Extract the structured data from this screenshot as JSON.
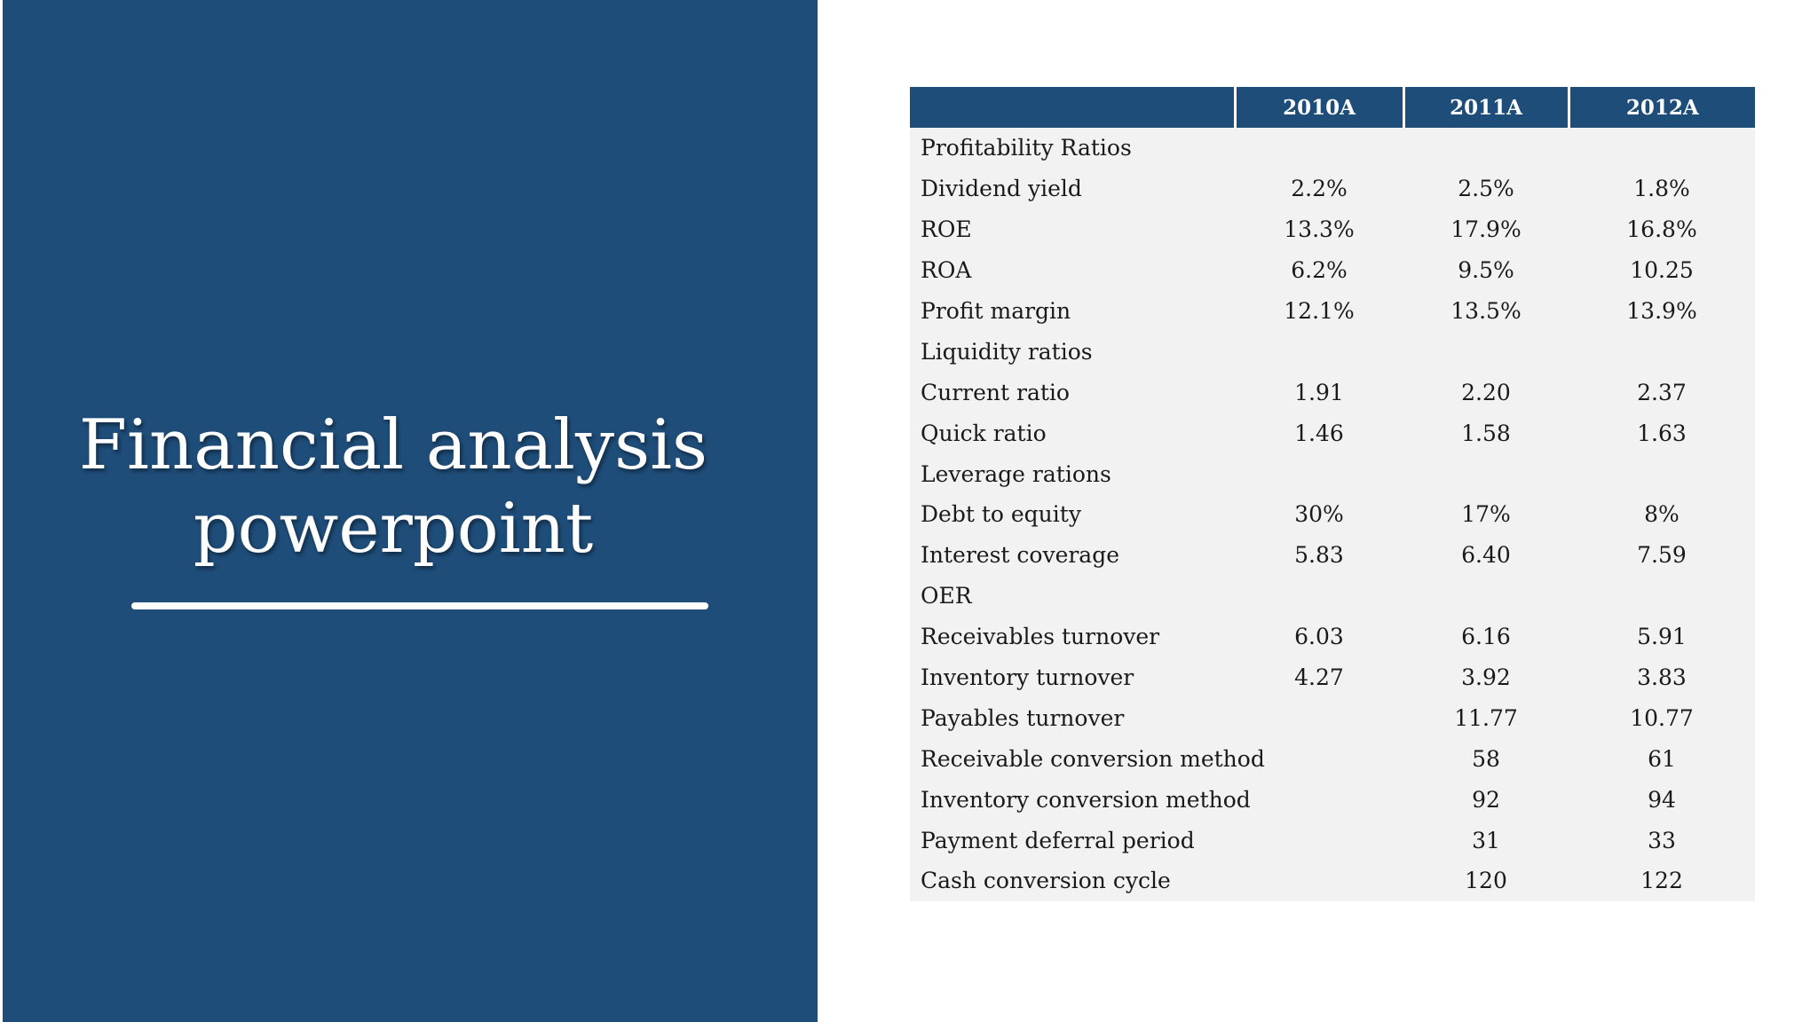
{
  "slide": {
    "title_line1": "Financial analysis",
    "title_line2": "powerpoint",
    "panel_color": "#1e4d79"
  },
  "table": {
    "headers": [
      "",
      "2010A",
      "2011A",
      "2012A"
    ],
    "rows": [
      [
        "Profitability Ratios",
        "",
        "",
        ""
      ],
      [
        "Dividend yield",
        "2.2%",
        "2.5%",
        "1.8%"
      ],
      [
        "ROE",
        "13.3%",
        "17.9%",
        "16.8%"
      ],
      [
        "ROA",
        "6.2%",
        "9.5%",
        "10.25"
      ],
      [
        "Profit margin",
        "12.1%",
        "13.5%",
        "13.9%"
      ],
      [
        "Liquidity ratios",
        "",
        "",
        ""
      ],
      [
        "Current ratio",
        "1.91",
        "2.20",
        "2.37"
      ],
      [
        "Quick ratio",
        "1.46",
        "1.58",
        "1.63"
      ],
      [
        "Leverage rations",
        "",
        "",
        ""
      ],
      [
        "Debt to equity",
        "30%",
        "17%",
        "8%"
      ],
      [
        "Interest coverage",
        "5.83",
        "6.40",
        "7.59"
      ],
      [
        "OER",
        "",
        "",
        ""
      ],
      [
        "Receivables turnover",
        "6.03",
        "6.16",
        "5.91"
      ],
      [
        "Inventory turnover",
        "4.27",
        "3.92",
        "3.83"
      ],
      [
        "Payables turnover",
        "",
        "11.77",
        "10.77"
      ],
      [
        "Receivable conversion method",
        "",
        "58",
        "61"
      ],
      [
        "Inventory conversion method",
        "",
        "92",
        "94"
      ],
      [
        "Payment deferral period",
        "",
        "31",
        "33"
      ],
      [
        "Cash conversion cycle",
        "",
        "120",
        "122"
      ]
    ]
  }
}
